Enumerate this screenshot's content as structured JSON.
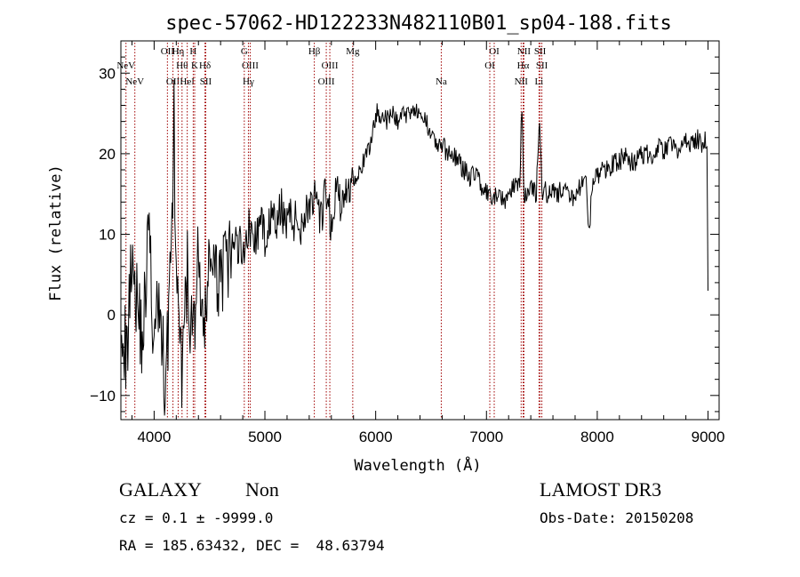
{
  "chart_data": {
    "type": "line",
    "title": "spec-57062-HD122233N482110B01_sp04-188.fits",
    "xlabel": "Wavelength (Å)",
    "ylabel": "Flux (relative)",
    "xlim": [
      3700,
      9100
    ],
    "ylim": [
      -13,
      34
    ],
    "xticks": [
      "4000",
      "5000",
      "6000",
      "7000",
      "8000",
      "9000"
    ],
    "yticks": [
      "-10",
      "0",
      "10",
      "20",
      "30"
    ],
    "grid": false,
    "series": [
      {
        "x": [
          3700,
          3750,
          3800,
          3850,
          3900,
          3950,
          4000,
          4050,
          4100,
          4150,
          4180,
          4200,
          4250,
          4300,
          4350,
          4400,
          4450,
          4500,
          4550,
          4600,
          4650,
          4700,
          4750,
          4800,
          4850,
          4900,
          4950,
          5000,
          5050,
          5100,
          5150,
          5200,
          5250,
          5300,
          5350,
          5400,
          5450,
          5500,
          5550,
          5600,
          5650,
          5700,
          5750,
          5800,
          5850,
          5900,
          5950,
          6000,
          6050,
          6100,
          6150,
          6200,
          6250,
          6300,
          6350,
          6400,
          6450,
          6500,
          6550,
          6600,
          6650,
          6700,
          6750,
          6800,
          6850,
          6900,
          6950,
          7000,
          7050,
          7100,
          7150,
          7200,
          7250,
          7300,
          7320,
          7340,
          7360,
          7400,
          7450,
          7480,
          7500,
          7520,
          7550,
          7600,
          7650,
          7700,
          7750,
          7800,
          7850,
          7900,
          7930,
          7950,
          8000,
          8050,
          8100,
          8150,
          8200,
          8250,
          8300,
          8350,
          8400,
          8450,
          8500,
          8550,
          8600,
          8650,
          8700,
          8750,
          8800,
          8850,
          8900,
          8950,
          8990,
          9000
        ],
        "values": [
          2,
          -6,
          9,
          1,
          -3,
          11,
          -4,
          2,
          -9,
          6,
          24,
          3,
          -8,
          5,
          -4,
          8,
          -5,
          9,
          3,
          6,
          5,
          8,
          9,
          8,
          11,
          9,
          11,
          10,
          12,
          11,
          13,
          12,
          12,
          11,
          12,
          14,
          14,
          11,
          15,
          11,
          16,
          13,
          16,
          17,
          18,
          19,
          21,
          25,
          25,
          24,
          25,
          24,
          25,
          25,
          26,
          24,
          24,
          23,
          21,
          21,
          20,
          20,
          19,
          18,
          17,
          18,
          16,
          15,
          14,
          15,
          14,
          15,
          16,
          17,
          26,
          14,
          15,
          16,
          15,
          25,
          15,
          16,
          15,
          16,
          15,
          16,
          14,
          15,
          16,
          16,
          10,
          16,
          17,
          18,
          18,
          19,
          19,
          20,
          19,
          19,
          20,
          20,
          20,
          21,
          20,
          21,
          21,
          20,
          22,
          21,
          22,
          21,
          22,
          3
        ]
      }
    ],
    "lines": [
      {
        "label": "NeV",
        "x": 3746,
        "row": 1
      },
      {
        "label": "NeV",
        "x": 3826,
        "row": 2
      },
      {
        "label": "OII",
        "x": 4120,
        "row": 0
      },
      {
        "label": "OII",
        "x": 4170,
        "row": 2
      },
      {
        "label": "Hη",
        "x": 4217,
        "row": 0
      },
      {
        "label": "Hθ",
        "x": 4252,
        "row": 1
      },
      {
        "label": "HeI",
        "x": 4299,
        "row": 2
      },
      {
        "label": "H",
        "x": 4353,
        "row": 0
      },
      {
        "label": "K",
        "x": 4366,
        "row": 1
      },
      {
        "label": "Hδ",
        "x": 4459,
        "row": 1
      },
      {
        "label": "SII",
        "x": 4466,
        "row": 2
      },
      {
        "label": "G",
        "x": 4814,
        "row": 0
      },
      {
        "label": "OIII",
        "x": 4867,
        "row": 1
      },
      {
        "label": "Hγ",
        "x": 4851,
        "row": 2
      },
      {
        "label": "Hβ",
        "x": 5446,
        "row": 0
      },
      {
        "label": "OIII",
        "x": 5586,
        "row": 1
      },
      {
        "label": "OIII",
        "x": 5554,
        "row": 2
      },
      {
        "label": "Mg",
        "x": 5793,
        "row": 0
      },
      {
        "label": "Na",
        "x": 6592,
        "row": 2
      },
      {
        "label": "OI",
        "x": 7070,
        "row": 0
      },
      {
        "label": "OI",
        "x": 7030,
        "row": 1
      },
      {
        "label": "NII",
        "x": 7338,
        "row": 0
      },
      {
        "label": "Hα",
        "x": 7331,
        "row": 1
      },
      {
        "label": "NII",
        "x": 7313,
        "row": 2
      },
      {
        "label": "SII",
        "x": 7484,
        "row": 0
      },
      {
        "label": "SII",
        "x": 7500,
        "row": 1
      },
      {
        "label": "Li",
        "x": 7474,
        "row": 2
      }
    ],
    "line_color": "#a00000"
  },
  "info": {
    "class": "GALAXY",
    "subclass": "Non",
    "survey": "LAMOST DR3",
    "cz": "cz = 0.1 ± -9999.0",
    "obs_date": "Obs-Date: 20150208",
    "radec": "RA = 185.63432, DEC =  48.63794"
  }
}
